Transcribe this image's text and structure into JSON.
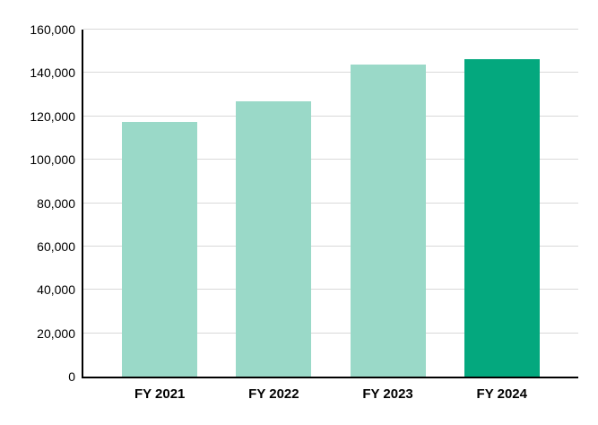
{
  "chart_data": {
    "type": "bar",
    "title": "",
    "xlabel": "",
    "ylabel": "",
    "categories": [
      "FY 2021",
      "FY 2022",
      "FY 2023",
      "FY 2024"
    ],
    "values": [
      117500,
      126900,
      143700,
      146200
    ],
    "ylim": [
      0,
      160000
    ],
    "ytick_interval": 20000,
    "ytick_values": [
      0,
      20000,
      40000,
      60000,
      80000,
      100000,
      120000,
      140000,
      160000
    ],
    "ytick_labels": [
      "0",
      "20,000",
      "40,000",
      "60,000",
      "80,000",
      "100,000",
      "120,000",
      "140,000",
      "160,000"
    ],
    "grid": true,
    "legend": false,
    "bar_colors": [
      "#9ad9c8",
      "#9ad9c8",
      "#9ad9c8",
      "#04a87e"
    ],
    "colors": {
      "bar_light": "#9ad9c8",
      "bar_accent": "#04a87e",
      "gridline": "#d9d9d9",
      "axis": "#000000",
      "text": "#000000",
      "background": "#ffffff"
    }
  }
}
